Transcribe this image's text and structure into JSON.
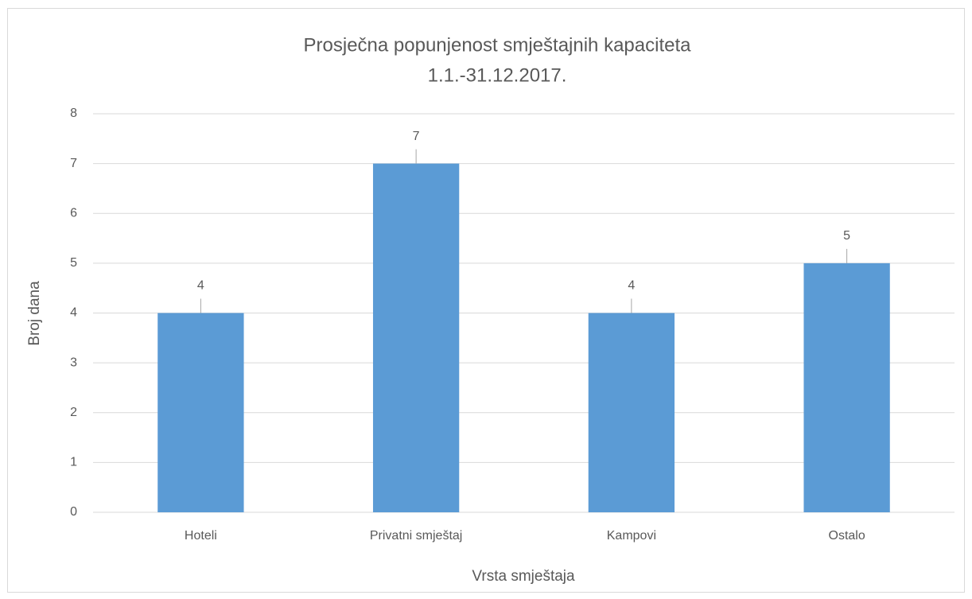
{
  "chart_data": {
    "type": "bar",
    "title": [
      "Prosječna popunjenost smještajnih kapaciteta",
      "1.1.-31.12.2017."
    ],
    "x_label": "Vrsta smještaja",
    "y_label": "Broj dana",
    "categories": [
      "Hoteli",
      "Privatni smještaj",
      "Kampovi",
      "Ostalo"
    ],
    "values": [
      4,
      7,
      4,
      5
    ],
    "color": "#5b9bd5",
    "ylim": [
      0,
      8
    ],
    "yticks": [
      0,
      1,
      2,
      3,
      4,
      5,
      6,
      7,
      8
    ],
    "grid": true
  }
}
